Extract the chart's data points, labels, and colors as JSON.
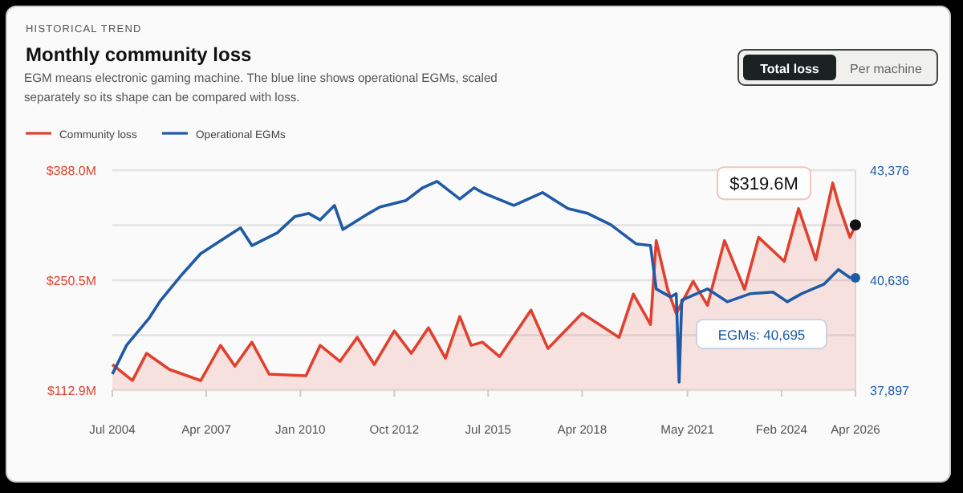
{
  "chart_data": {
    "type": "area",
    "title": "Monthly community loss",
    "subtitle": "EGM means electronic gaming machine. The blue line shows operational EGMs, scaled separately so its shape can be compared with loss.",
    "annotations": [
      "HISTORICAL TREND",
      "Total loss",
      "Per machine",
      "EGMs: 40,695",
      "$319.6M"
    ],
    "legend": "top left",
    "grid": "y",
    "xlim": [
      "2004-07",
      "2026-04"
    ],
    "xticks": [
      {
        "value": "2004-07",
        "label": "Jul 2004"
      },
      {
        "value": "2007-04",
        "label": "Apr 2007"
      },
      {
        "value": "2010-01",
        "label": "Jan 2010"
      },
      {
        "value": "2012-10",
        "label": "Oct 2012"
      },
      {
        "value": "2015-07",
        "label": "Jul 2015"
      },
      {
        "value": "2018-04",
        "label": "Apr 2018"
      },
      {
        "value": "2021-05",
        "label": "May 2021"
      },
      {
        "value": "2024-02",
        "label": "Feb 2024"
      },
      {
        "value": "2026-04",
        "label": "Apr 2026"
      }
    ],
    "ylim": [
      112.9,
      388.0
    ],
    "yticks": [
      {
        "value": 112.9,
        "label": "$112.9M"
      },
      {
        "value": 181.7,
        "label": null
      },
      {
        "value": 250.5,
        "label": "$250.5M"
      },
      {
        "value": 319.2,
        "label": null
      },
      {
        "value": 388.0,
        "label": "$388.0M"
      }
    ],
    "y2lim": [
      37897,
      43376
    ],
    "y2ticks": [
      {
        "value": 37897,
        "label": "37,897"
      },
      {
        "value": 40636,
        "label": "40,636"
      },
      {
        "value": 43376,
        "label": "43,376"
      }
    ],
    "series": [
      {
        "name": "Community loss",
        "color": "#e0412f",
        "x": [
          "2004-07",
          "2005-02",
          "2005-07",
          "2006-03",
          "2007-02",
          "2007-09",
          "2008-02",
          "2008-08",
          "2009-02",
          "2010-03",
          "2010-08",
          "2011-03",
          "2011-09",
          "2012-03",
          "2012-10",
          "2013-04",
          "2013-10",
          "2014-04",
          "2014-09",
          "2015-01",
          "2015-05",
          "2015-11",
          "2016-10",
          "2017-04",
          "2018-04",
          "2019-05",
          "2019-10",
          "2020-04",
          "2020-06",
          "2020-10",
          "2021-01",
          "2021-07",
          "2021-12",
          "2022-06",
          "2023-01",
          "2023-06",
          "2024-03",
          "2024-08",
          "2025-02",
          "2025-08",
          "2025-10",
          "2026-02",
          "2026-04"
        ],
        "values": [
          145,
          125,
          159,
          139,
          125,
          169,
          143,
          173,
          133,
          131,
          169,
          149,
          179,
          145,
          187,
          159,
          191,
          153,
          205,
          169,
          173,
          155,
          213,
          165,
          209,
          179,
          233,
          195,
          300,
          239,
          209,
          249,
          219,
          300,
          239,
          304,
          274,
          340,
          276,
          372,
          346,
          304,
          319.6
        ]
      },
      {
        "name": "Operational EGMs",
        "type": "line",
        "axis": "y2",
        "color": "#1f5aa6",
        "x": [
          "2004-07",
          "2004-12",
          "2005-08",
          "2005-12",
          "2006-07",
          "2007-02",
          "2007-09",
          "2008-04",
          "2008-08",
          "2009-05",
          "2009-11",
          "2010-04",
          "2010-08",
          "2011-01",
          "2011-04",
          "2012-01",
          "2012-05",
          "2013-02",
          "2013-08",
          "2014-01",
          "2014-09",
          "2015-02",
          "2015-05",
          "2016-04",
          "2017-02",
          "2017-11",
          "2018-06",
          "2019-02",
          "2019-11",
          "2020-04",
          "2020-06",
          "2020-11",
          "2021-01",
          "2021-02",
          "2021-03",
          "2021-12",
          "2022-07",
          "2023-03",
          "2023-11",
          "2024-04",
          "2024-09",
          "2025-05",
          "2025-10",
          "2026-02",
          "2026-04"
        ],
        "values": [
          38300,
          39020,
          39700,
          40140,
          40740,
          41300,
          41620,
          41940,
          41500,
          41820,
          42220,
          42300,
          42140,
          42500,
          41900,
          42300,
          42460,
          42620,
          42940,
          43100,
          42660,
          42940,
          42820,
          42500,
          42820,
          42420,
          42300,
          42020,
          41540,
          41500,
          40420,
          40220,
          40300,
          38100,
          40140,
          40420,
          40100,
          40300,
          40340,
          40100,
          40300,
          40540,
          40900,
          40700,
          40695
        ]
      }
    ]
  }
}
